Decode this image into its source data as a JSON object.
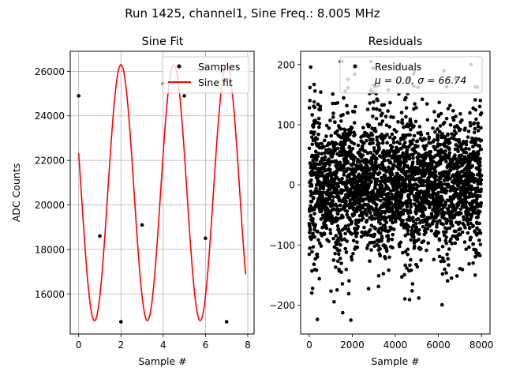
{
  "suptitle": "Run 1425, channel1, Sine Freq.: 8.005 MHz",
  "chart_data": [
    {
      "type": "line",
      "title": "Sine Fit",
      "xlabel": "Sample #",
      "ylabel": "ADC Counts",
      "xlim": [
        -0.4,
        8.3
      ],
      "ylim": [
        14200,
        26900
      ],
      "xticks": [
        0,
        2,
        4,
        6,
        8
      ],
      "yticks": [
        16000,
        18000,
        20000,
        22000,
        24000,
        26000
      ],
      "grid": true,
      "legend_position": "top-right",
      "series": [
        {
          "name": "Samples",
          "style": "markers",
          "color": "#000000",
          "x": [
            0,
            1,
            2,
            3,
            4,
            5,
            6,
            7
          ],
          "y": [
            24900,
            18600,
            14750,
            19100,
            25450,
            24900,
            18500,
            14750
          ]
        },
        {
          "name": "Sine fit",
          "style": "line",
          "color": "#ff0000",
          "amplitude": 5750,
          "offset": 20550,
          "peak_x": 4.5,
          "x_range": [
            0,
            7.9
          ]
        }
      ]
    },
    {
      "type": "scatter",
      "title": "Residuals",
      "xlabel": "Sample #",
      "ylabel": "",
      "xlim": [
        -400,
        8400
      ],
      "ylim": [
        -248,
        222
      ],
      "xticks": [
        0,
        2000,
        4000,
        6000,
        8000
      ],
      "yticks": [
        -200,
        -100,
        0,
        100,
        200
      ],
      "grid": false,
      "legend_position": "top-right",
      "series": [
        {
          "name": "Residuals",
          "color": "#000000",
          "x_range": [
            0,
            8000
          ],
          "mean": 0.0,
          "std": 66.74,
          "envelope_period": 1600
        }
      ],
      "annotation": "μ = 0.0, σ = 66.74"
    }
  ]
}
